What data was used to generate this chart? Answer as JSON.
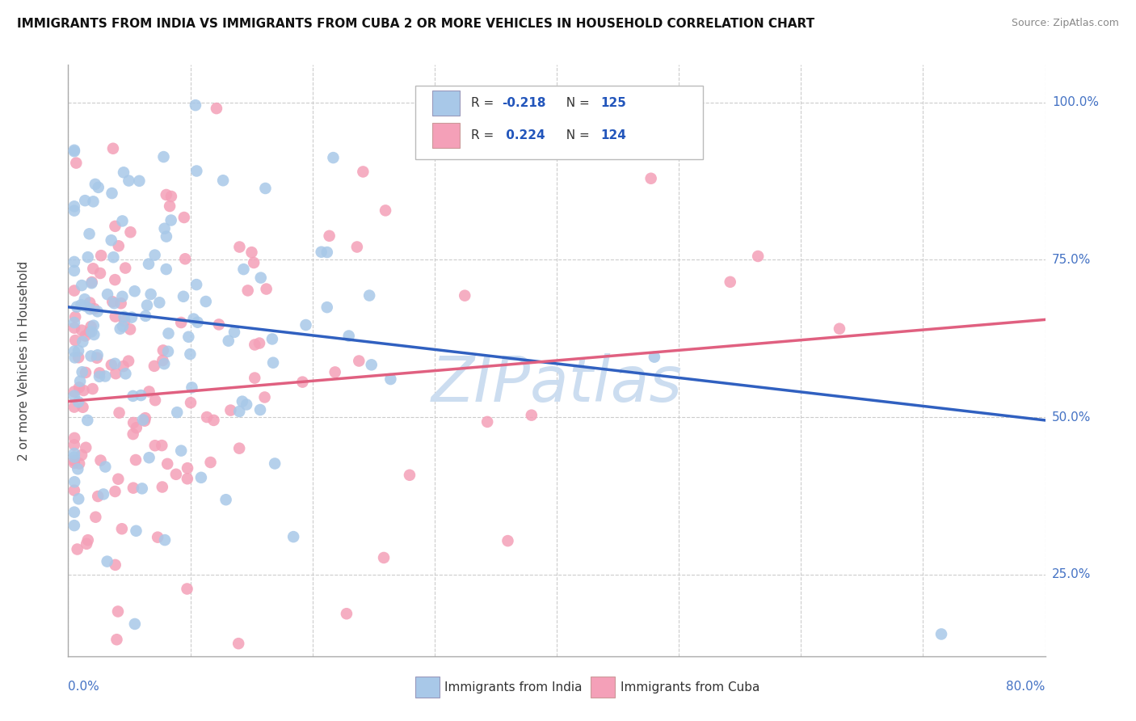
{
  "title": "IMMIGRANTS FROM INDIA VS IMMIGRANTS FROM CUBA 2 OR MORE VEHICLES IN HOUSEHOLD CORRELATION CHART",
  "source": "Source: ZipAtlas.com",
  "ylabel_label": "2 or more Vehicles in Household",
  "legend_india": "Immigrants from India",
  "legend_cuba": "Immigrants from Cuba",
  "R_india": -0.218,
  "N_india": 125,
  "R_cuba": 0.224,
  "N_cuba": 124,
  "color_india": "#a8c8e8",
  "color_cuba": "#f4a0b8",
  "color_india_line": "#3060c0",
  "color_cuba_line": "#e06080",
  "watermark": "ZIPatlas",
  "watermark_color": "#ccddf0",
  "xmin": 0.0,
  "xmax": 0.8,
  "ymin": 0.12,
  "ymax": 1.06,
  "india_trend_x0": 0.0,
  "india_trend_y0": 0.675,
  "india_trend_x1": 0.8,
  "india_trend_y1": 0.495,
  "cuba_trend_x0": 0.0,
  "cuba_trend_y0": 0.525,
  "cuba_trend_x1": 0.8,
  "cuba_trend_y1": 0.655,
  "yticks": [
    0.25,
    0.5,
    0.75,
    1.0
  ],
  "ytick_labels": [
    "25.0%",
    "50.0%",
    "75.0%",
    "100.0%"
  ],
  "xtick_labels": [
    "0.0%",
    "80.0%"
  ]
}
